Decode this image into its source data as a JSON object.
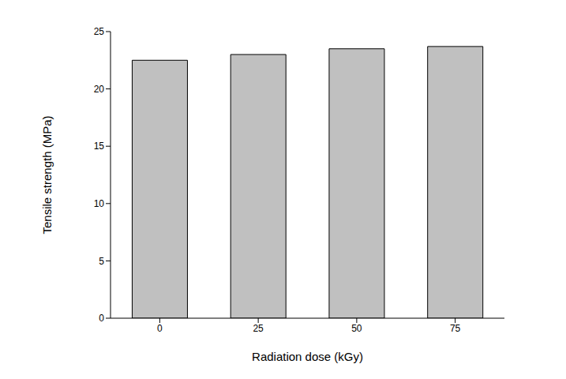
{
  "chart_data": {
    "type": "bar",
    "categories": [
      "0",
      "25",
      "50",
      "75"
    ],
    "values": [
      22.5,
      23.0,
      23.5,
      23.7
    ],
    "color": "#c0c0c0",
    "x_label": "Radiation dose (kGy)",
    "y_label": "Tensile strength (MPa)",
    "ylim": [
      0,
      25
    ],
    "yticks": [
      0,
      5,
      10,
      15,
      20,
      25
    ],
    "grid": false
  }
}
